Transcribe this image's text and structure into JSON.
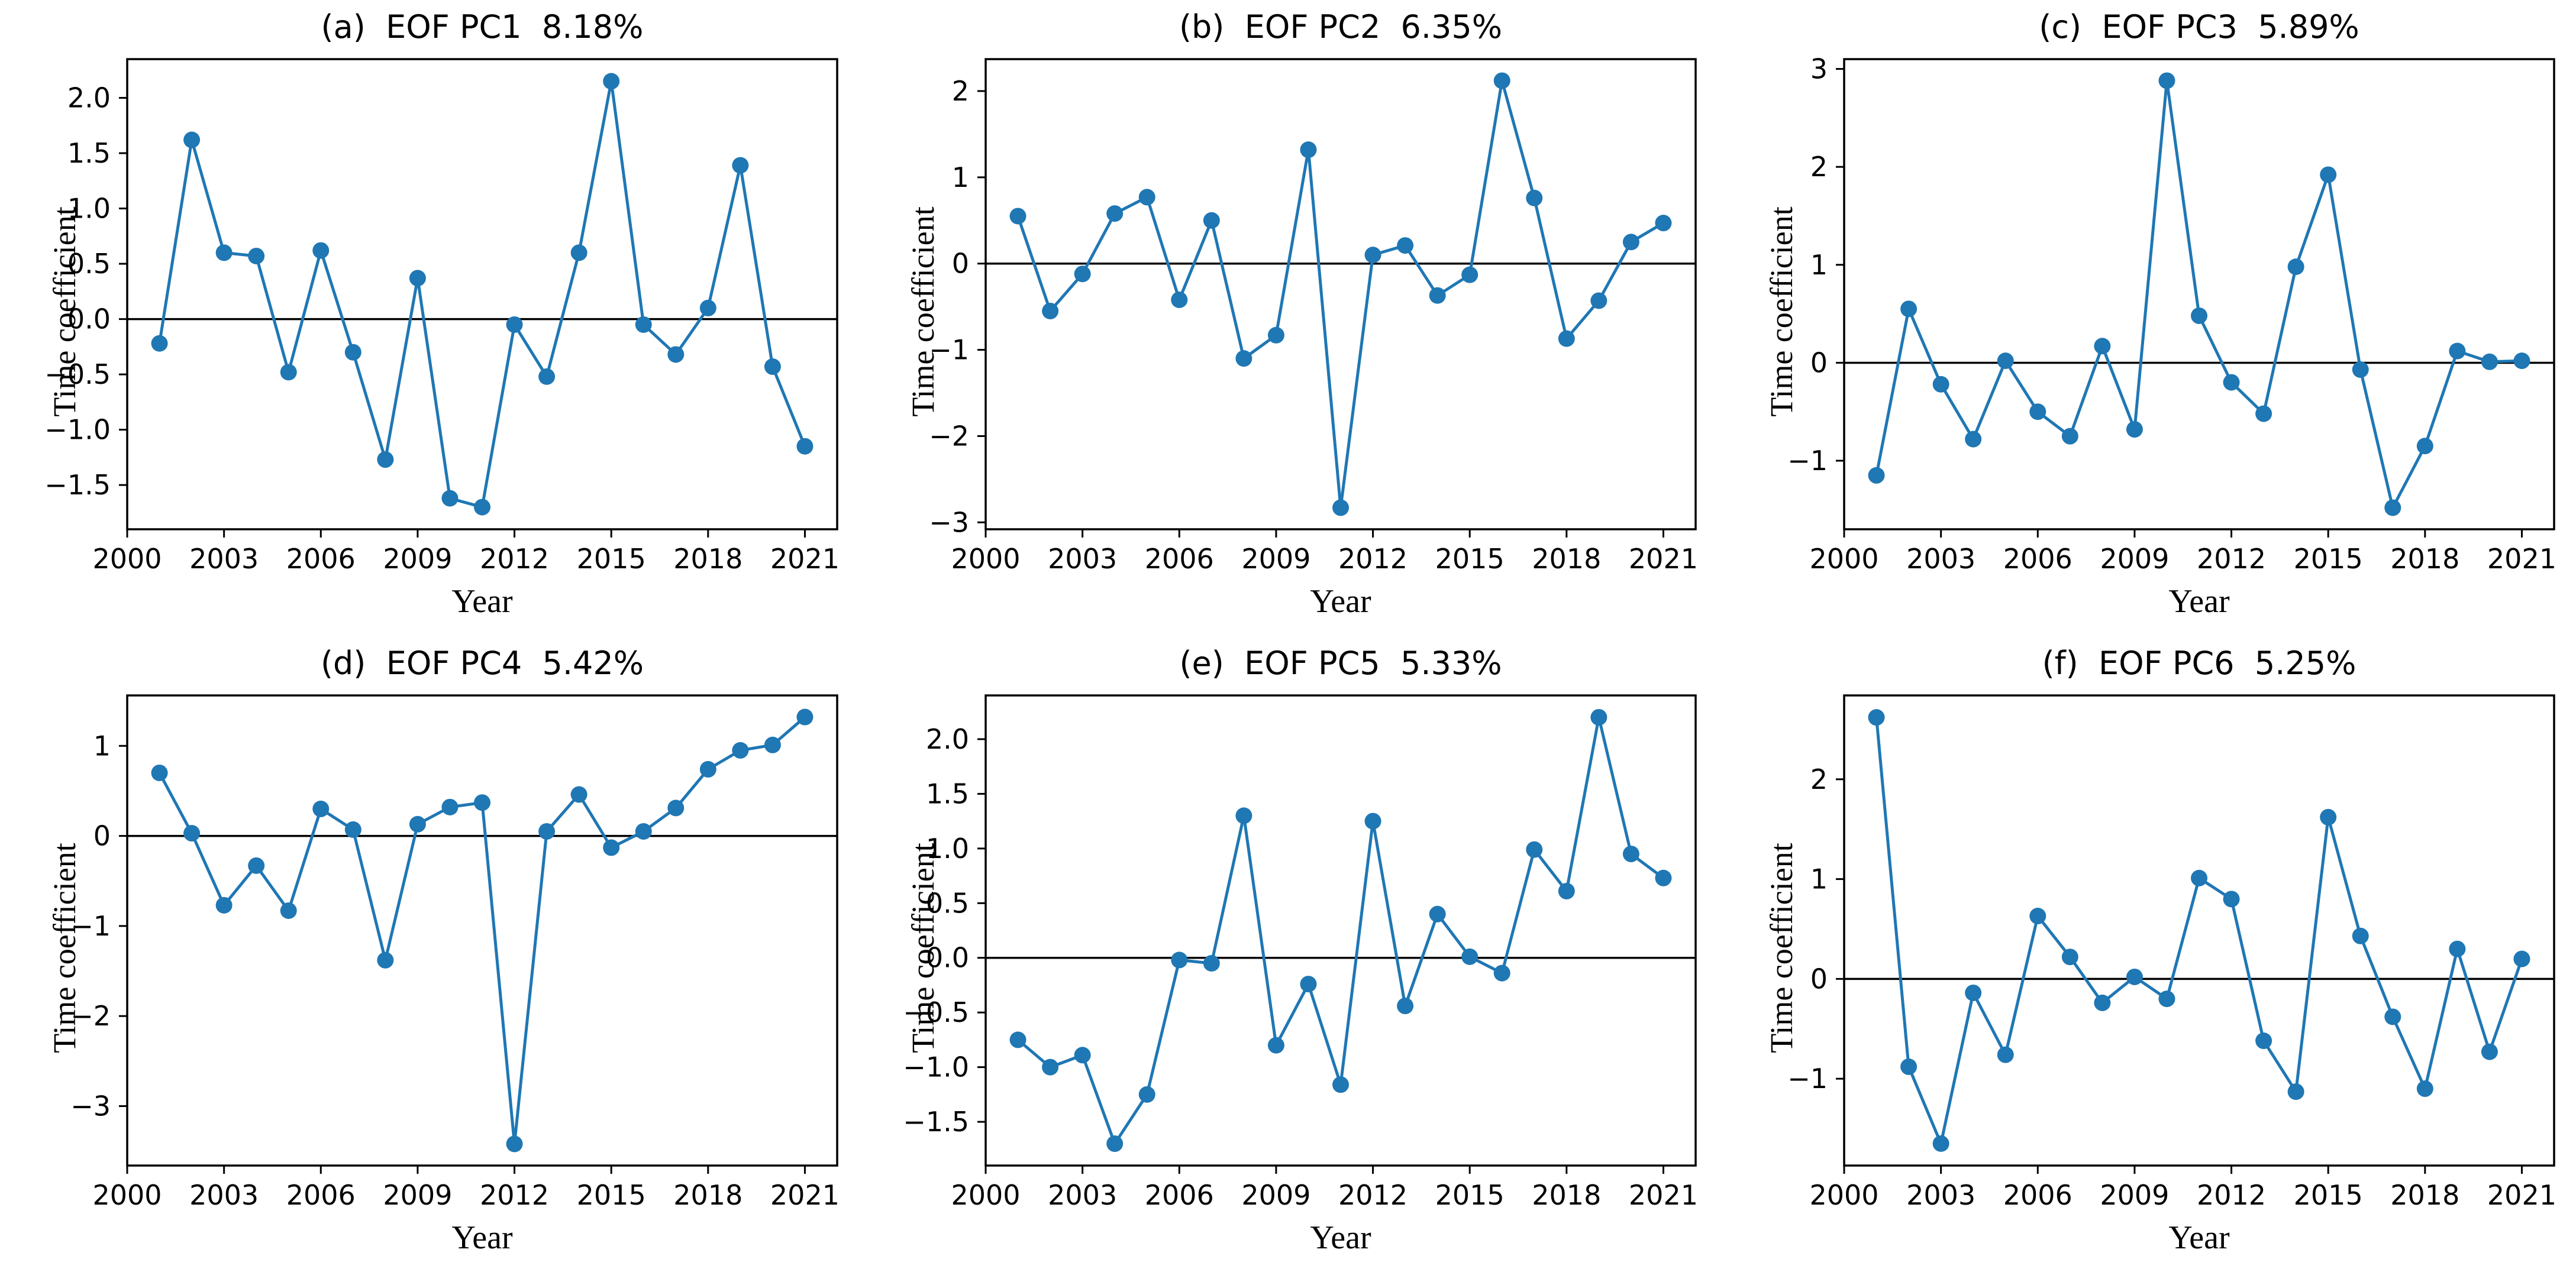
{
  "figure": {
    "background": "#ffffff",
    "line_color": "#1f77b4",
    "axis_color": "#000000",
    "xlabel": "Year",
    "ylabel": "Time coefficient"
  },
  "chart_data": [
    {
      "type": "line",
      "panel_letter": "(a)",
      "series_name": "EOF PC1",
      "variance": "8.18%",
      "title": "(a)  EOF PC1  8.18%",
      "xlabel": "Year",
      "ylabel": "Time coefficient",
      "x": [
        2001,
        2002,
        2003,
        2004,
        2005,
        2006,
        2007,
        2008,
        2009,
        2010,
        2011,
        2012,
        2013,
        2014,
        2015,
        2016,
        2017,
        2018,
        2019,
        2020,
        2021
      ],
      "values": [
        -0.22,
        1.62,
        0.6,
        0.57,
        -0.48,
        0.62,
        -0.3,
        -1.27,
        0.37,
        -1.62,
        -1.7,
        -0.05,
        -0.52,
        0.6,
        2.15,
        -0.05,
        -0.32,
        0.1,
        1.39,
        -0.43,
        -1.15
      ],
      "xlim": [
        2000,
        2022
      ],
      "ylim": [
        -1.9,
        2.35
      ],
      "xticks": [
        2000,
        2003,
        2006,
        2009,
        2012,
        2015,
        2018,
        2021
      ],
      "yticks": [
        -1.5,
        -1.0,
        -0.5,
        0.0,
        0.5,
        1.0,
        1.5,
        2.0
      ],
      "ytick_labels": [
        "−1.5",
        "−1.0",
        "−0.5",
        "0.0",
        "0.5",
        "1.0",
        "1.5",
        "2.0"
      ],
      "zero_line": true,
      "grid": false,
      "legend": null
    },
    {
      "type": "line",
      "panel_letter": "(b)",
      "series_name": "EOF PC2",
      "variance": "6.35%",
      "title": "(b)  EOF PC2  6.35%",
      "xlabel": "Year",
      "ylabel": "Time coefficient",
      "x": [
        2001,
        2002,
        2003,
        2004,
        2005,
        2006,
        2007,
        2008,
        2009,
        2010,
        2011,
        2012,
        2013,
        2014,
        2015,
        2016,
        2017,
        2018,
        2019,
        2020,
        2021
      ],
      "values": [
        0.55,
        -0.55,
        -0.12,
        0.58,
        0.77,
        -0.42,
        0.5,
        -1.1,
        -0.83,
        1.32,
        -2.83,
        0.1,
        0.21,
        -0.37,
        -0.13,
        2.12,
        0.76,
        -0.87,
        -0.43,
        0.25,
        0.47
      ],
      "xlim": [
        2000,
        2022
      ],
      "ylim": [
        -3.08,
        2.37
      ],
      "xticks": [
        2000,
        2003,
        2006,
        2009,
        2012,
        2015,
        2018,
        2021
      ],
      "yticks": [
        -3,
        -2,
        -1,
        0,
        1,
        2
      ],
      "ytick_labels": [
        "−3",
        "−2",
        "−1",
        "0",
        "1",
        "2"
      ],
      "zero_line": true,
      "grid": false,
      "legend": null
    },
    {
      "type": "line",
      "panel_letter": "(c)",
      "series_name": "EOF PC3",
      "variance": "5.89%",
      "title": "(c)  EOF PC3  5.89%",
      "xlabel": "Year",
      "ylabel": "Time coefficient",
      "x": [
        2001,
        2002,
        2003,
        2004,
        2005,
        2006,
        2007,
        2008,
        2009,
        2010,
        2011,
        2012,
        2013,
        2014,
        2015,
        2016,
        2017,
        2018,
        2019,
        2020,
        2021
      ],
      "values": [
        -1.15,
        0.55,
        -0.22,
        -0.78,
        0.02,
        -0.5,
        -0.75,
        0.17,
        -0.68,
        2.88,
        0.48,
        -0.2,
        -0.52,
        0.98,
        1.92,
        -0.07,
        -1.48,
        -0.85,
        0.12,
        0.01,
        0.02
      ],
      "xlim": [
        2000,
        2022
      ],
      "ylim": [
        -1.7,
        3.1
      ],
      "xticks": [
        2000,
        2003,
        2006,
        2009,
        2012,
        2015,
        2018,
        2021
      ],
      "yticks": [
        -1,
        0,
        1,
        2,
        3
      ],
      "ytick_labels": [
        "−1",
        "0",
        "1",
        "2",
        "3"
      ],
      "zero_line": true,
      "grid": false,
      "legend": null
    },
    {
      "type": "line",
      "panel_letter": "(d)",
      "series_name": "EOF PC4",
      "variance": "5.42%",
      "title": "(d)  EOF PC4  5.42%",
      "xlabel": "Year",
      "ylabel": "Time coefficient",
      "x": [
        2001,
        2002,
        2003,
        2004,
        2005,
        2006,
        2007,
        2008,
        2009,
        2010,
        2011,
        2012,
        2013,
        2014,
        2015,
        2016,
        2017,
        2018,
        2019,
        2020,
        2021
      ],
      "values": [
        0.7,
        0.03,
        -0.77,
        -0.33,
        -0.83,
        0.3,
        0.07,
        -1.38,
        0.13,
        0.32,
        0.37,
        -3.42,
        0.05,
        0.46,
        -0.13,
        0.05,
        0.31,
        0.74,
        0.95,
        1.01,
        1.32
      ],
      "xlim": [
        2000,
        2022
      ],
      "ylim": [
        -3.66,
        1.56
      ],
      "xticks": [
        2000,
        2003,
        2006,
        2009,
        2012,
        2015,
        2018,
        2021
      ],
      "yticks": [
        -3,
        -2,
        -1,
        0,
        1
      ],
      "ytick_labels": [
        "−3",
        "−2",
        "−1",
        "0",
        "1"
      ],
      "zero_line": true,
      "grid": false,
      "legend": null
    },
    {
      "type": "line",
      "panel_letter": "(e)",
      "series_name": "EOF PC5",
      "variance": "5.33%",
      "title": "(e)  EOF PC5  5.33%",
      "xlabel": "Year",
      "ylabel": "Time coefficient",
      "x": [
        2001,
        2002,
        2003,
        2004,
        2005,
        2006,
        2007,
        2008,
        2009,
        2010,
        2011,
        2012,
        2013,
        2014,
        2015,
        2016,
        2017,
        2018,
        2019,
        2020,
        2021
      ],
      "values": [
        -0.75,
        -1.0,
        -0.89,
        -1.7,
        -1.25,
        -0.02,
        -0.05,
        1.3,
        -0.8,
        -0.24,
        -1.16,
        1.25,
        -0.44,
        0.4,
        0.01,
        -0.14,
        0.99,
        0.61,
        2.2,
        0.95,
        0.73
      ],
      "xlim": [
        2000,
        2022
      ],
      "ylim": [
        -1.9,
        2.4
      ],
      "xticks": [
        2000,
        2003,
        2006,
        2009,
        2012,
        2015,
        2018,
        2021
      ],
      "yticks": [
        -1.5,
        -1.0,
        -0.5,
        0.0,
        0.5,
        1.0,
        1.5,
        2.0
      ],
      "ytick_labels": [
        "−1.5",
        "−1.0",
        "−0.5",
        "0.0",
        "0.5",
        "1.0",
        "1.5",
        "2.0"
      ],
      "zero_line": true,
      "grid": false,
      "legend": null
    },
    {
      "type": "line",
      "panel_letter": "(f)",
      "series_name": "EOF PC6",
      "variance": "5.25%",
      "title": "(f)  EOF PC6  5.25%",
      "xlabel": "Year",
      "ylabel": "Time coefficient",
      "x": [
        2001,
        2002,
        2003,
        2004,
        2005,
        2006,
        2007,
        2008,
        2009,
        2010,
        2011,
        2012,
        2013,
        2014,
        2015,
        2016,
        2017,
        2018,
        2019,
        2020,
        2021
      ],
      "values": [
        2.62,
        -0.88,
        -1.65,
        -0.14,
        -0.76,
        0.63,
        0.22,
        -0.24,
        0.02,
        -0.2,
        1.01,
        0.8,
        -0.62,
        -1.13,
        1.62,
        0.43,
        -0.38,
        -1.1,
        0.3,
        -0.73,
        0.2
      ],
      "xlim": [
        2000,
        2022
      ],
      "ylim": [
        -1.87,
        2.84
      ],
      "xticks": [
        2000,
        2003,
        2006,
        2009,
        2012,
        2015,
        2018,
        2021
      ],
      "yticks": [
        -1,
        0,
        1,
        2
      ],
      "ytick_labels": [
        "−1",
        "0",
        "1",
        "2"
      ],
      "zero_line": true,
      "grid": false,
      "legend": null
    }
  ]
}
